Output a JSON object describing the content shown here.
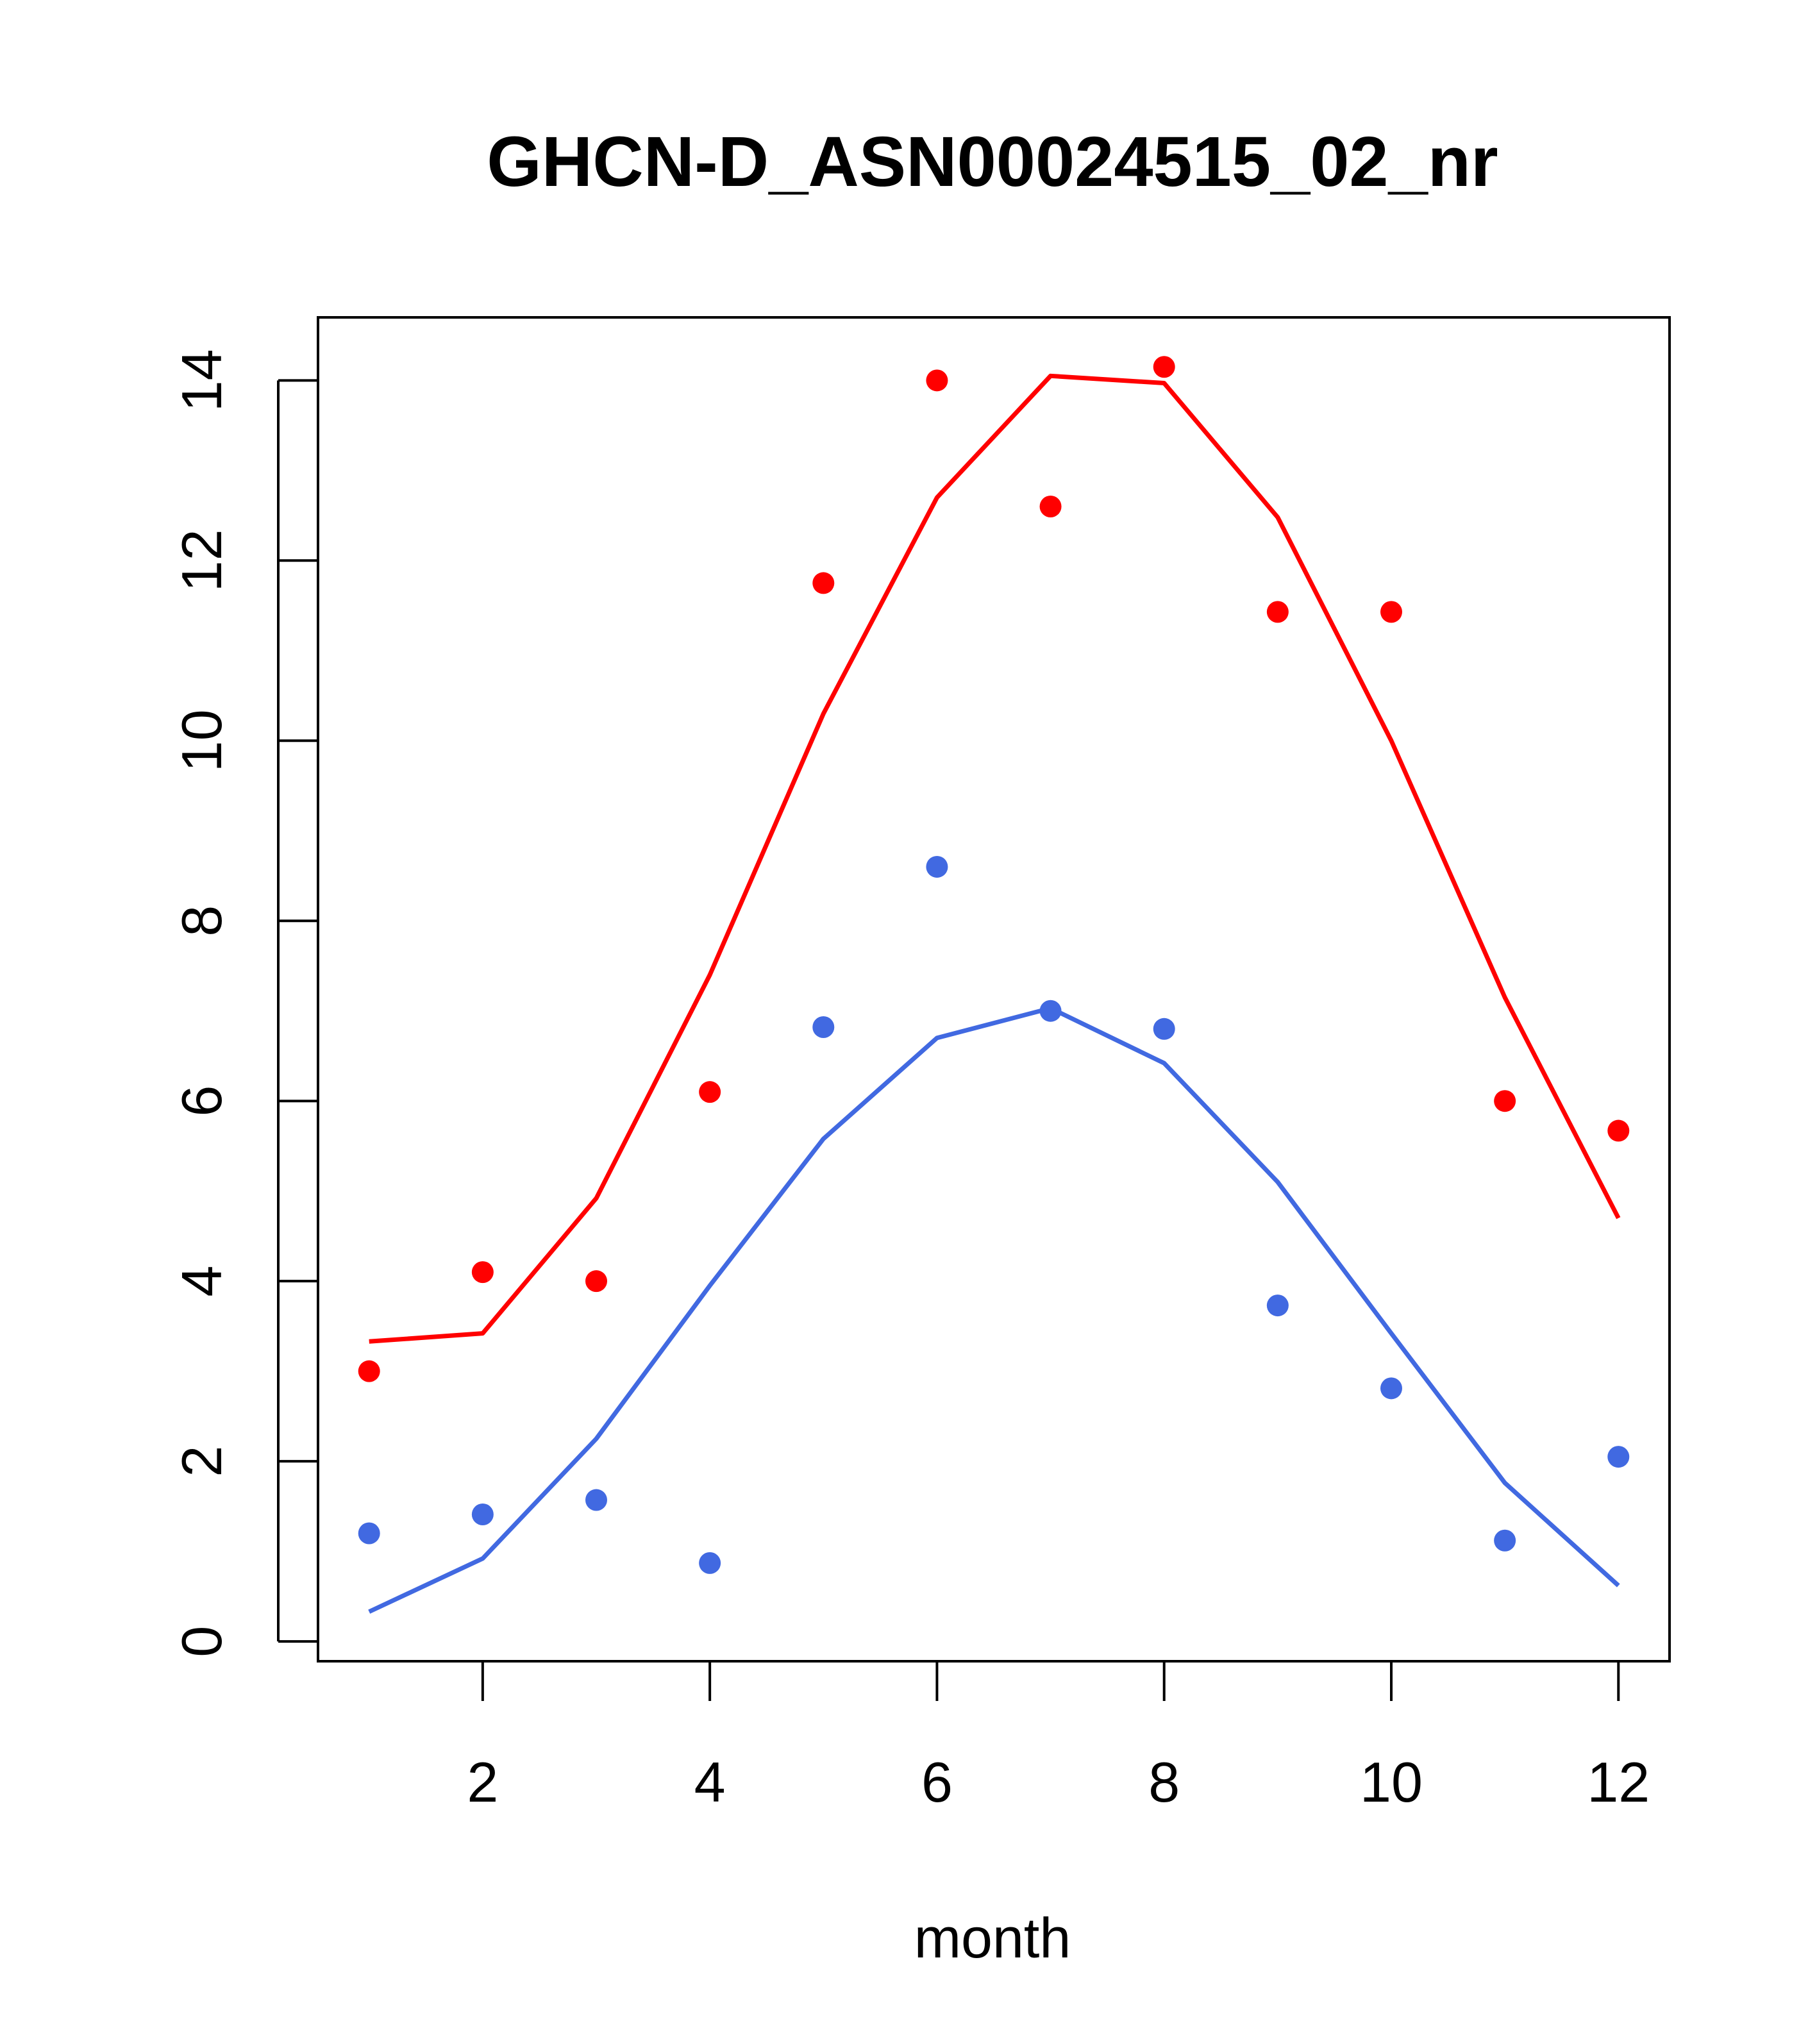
{
  "chart_data": {
    "type": "scatter",
    "title": "GHCN-D_ASN00024515_02_nr",
    "xlabel": "month",
    "ylabel": "",
    "xlim": [
      0.55,
      12.45
    ],
    "ylim": [
      -0.22,
      14.7
    ],
    "x_ticks": [
      2,
      4,
      6,
      8,
      10,
      12
    ],
    "y_ticks": [
      0,
      2,
      4,
      6,
      8,
      10,
      12,
      14
    ],
    "grid": false,
    "series": [
      {
        "color": "#ff0000",
        "points": {
          "x": [
            1,
            2,
            3,
            4,
            5,
            6,
            7,
            8,
            9,
            10,
            11,
            12
          ],
          "y": [
            3.0,
            4.1,
            4.0,
            6.1,
            11.75,
            14.0,
            12.6,
            14.15,
            11.43,
            11.43,
            6.0,
            5.67
          ]
        },
        "line": {
          "x": [
            1,
            2,
            3,
            4,
            5,
            6,
            7,
            8,
            9,
            10,
            11,
            12
          ],
          "y": [
            3.33,
            3.42,
            4.92,
            7.4,
            10.3,
            12.7,
            14.05,
            13.97,
            12.48,
            10.0,
            7.15,
            4.7
          ]
        }
      },
      {
        "color": "#4169e1",
        "points": {
          "x": [
            1,
            2,
            3,
            4,
            5,
            6,
            7,
            8,
            9,
            10,
            11,
            12
          ],
          "y": [
            1.2,
            1.41,
            1.57,
            0.87,
            6.82,
            8.6,
            7.0,
            6.8,
            3.73,
            2.81,
            1.12,
            2.05
          ]
        },
        "line": {
          "x": [
            1,
            2,
            3,
            4,
            5,
            6,
            7,
            8,
            9,
            10,
            11,
            12
          ],
          "y": [
            0.33,
            0.92,
            2.25,
            3.95,
            5.58,
            6.7,
            7.03,
            6.42,
            5.1,
            3.42,
            1.76,
            0.62
          ]
        }
      }
    ]
  }
}
